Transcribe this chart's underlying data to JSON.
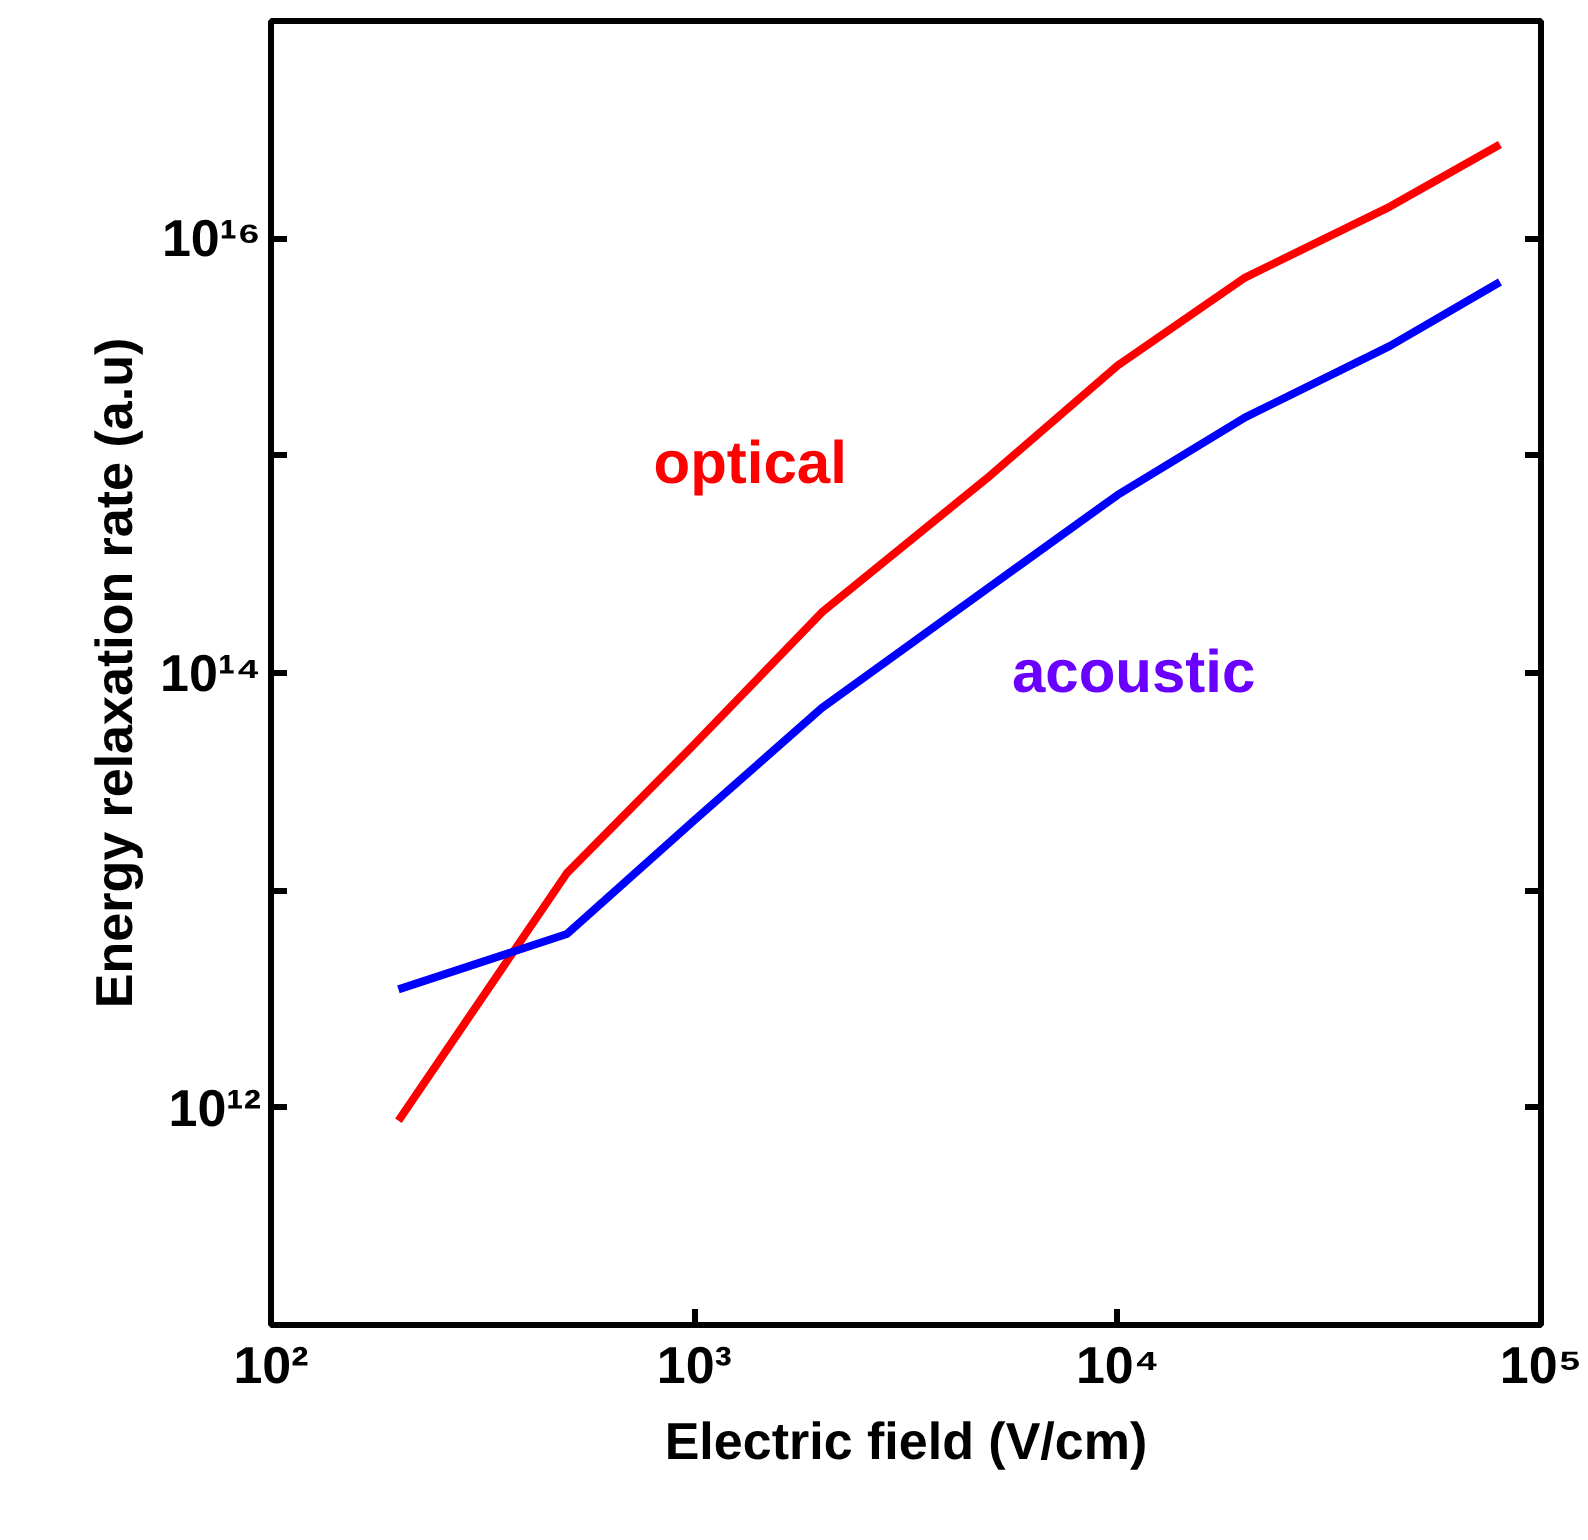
{
  "chart_data": {
    "type": "line",
    "xlabel": "Electric field (V/cm)",
    "ylabel": "Energy relaxation rate (a.u)",
    "log": "xy",
    "x": [
      200,
      500,
      1000,
      2000,
      5000,
      10000,
      20000,
      44000,
      80000
    ],
    "series": [
      {
        "name": "optical",
        "color": "#ff0000",
        "values": [
          870000000000.0,
          12000000000000.0,
          47000000000000.0,
          190000000000000.0,
          810000000000000.0,
          2600000000000000.0,
          6600000000000000.0,
          1.4e+16,
          2.7e+16
        ]
      },
      {
        "name": "acoustic",
        "color": "#0000ff",
        "values": [
          3500000000000.0,
          6300000000000.0,
          21000000000000.0,
          69000000000000.0,
          250000000000000.0,
          660000000000000.0,
          1500000000000000.0,
          3200000000000000.0,
          6300000000000000.0
        ]
      }
    ],
    "xlim": [
      100,
      100000
    ],
    "ylim": [
      100000000000.0,
      1e+17
    ],
    "xticks": [
      {
        "value": 100,
        "label": "10²"
      },
      {
        "value": 1000,
        "label": "10³"
      },
      {
        "value": 10000,
        "label": "10⁴"
      },
      {
        "value": 100000,
        "label": "10⁵"
      }
    ],
    "yticks": [
      {
        "value": 1000000000000.0,
        "label": "10¹²"
      },
      {
        "value": 10000000000000.0,
        "label": null
      },
      {
        "value": 100000000000000.0,
        "label": "10¹⁴"
      },
      {
        "value": 1000000000000000.0,
        "label": null
      },
      {
        "value": 1e+16,
        "label": "10¹⁶"
      }
    ],
    "grid": false
  }
}
